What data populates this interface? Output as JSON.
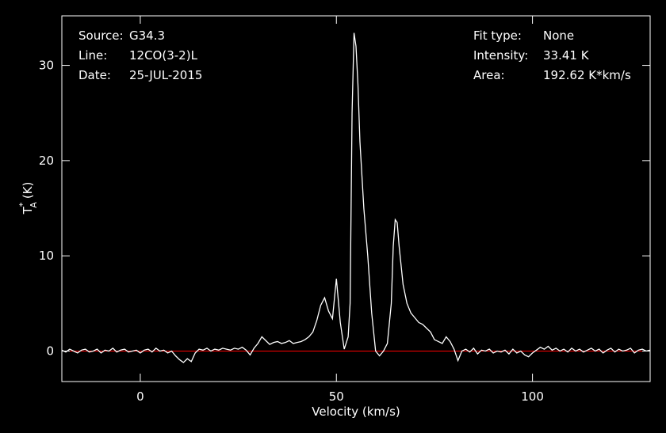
{
  "chart_data": {
    "type": "line",
    "xlabel": "Velocity (km/s)",
    "ylabel": {
      "main": "T",
      "sup": "*",
      "sub": "A",
      "unit": "(K)"
    },
    "annotations": {
      "left": [
        [
          "Source:",
          "G34.3"
        ],
        [
          "Line:",
          "12CO(3-2)L"
        ],
        [
          "Date:",
          "25-JUL-2015"
        ]
      ],
      "right": [
        [
          "Fit type:",
          "None"
        ],
        [
          "Intensity:",
          "33.41 K"
        ],
        [
          "Area:",
          "192.62 K*km/s"
        ]
      ]
    },
    "xlim": [
      -20,
      130
    ],
    "ylim": [
      -3.2,
      35.2
    ],
    "xticks": [
      0,
      50,
      100
    ],
    "yticks": [
      0,
      10,
      20,
      30
    ],
    "baseline": {
      "value": 0,
      "color": "#ff0000"
    },
    "series": [
      {
        "color": "#ffffff",
        "x": [
          -20,
          -19,
          -18,
          -17,
          -16,
          -15,
          -14,
          -13,
          -12,
          -11,
          -10,
          -9,
          -8,
          -7,
          -6,
          -5,
          -4,
          -3,
          -2,
          -1,
          0,
          1,
          2,
          3,
          4,
          5,
          6,
          7,
          8,
          9,
          10,
          11,
          12,
          13,
          14,
          15,
          16,
          17,
          18,
          19,
          20,
          21,
          22,
          23,
          24,
          25,
          26,
          27,
          28,
          29,
          30,
          31,
          32,
          33,
          34,
          35,
          36,
          37,
          38,
          39,
          40,
          41,
          42,
          43,
          44,
          45,
          46,
          47,
          48,
          49,
          50,
          51,
          52,
          53,
          53.5,
          54,
          54.5,
          55,
          55.5,
          56,
          57,
          58,
          59,
          60,
          61,
          62,
          63,
          64,
          64.5,
          65,
          65.5,
          66,
          67,
          68,
          69,
          70,
          71,
          72,
          73,
          74,
          75,
          76,
          77,
          78,
          79,
          80,
          81,
          82,
          83,
          84,
          85,
          86,
          87,
          88,
          89,
          90,
          91,
          92,
          93,
          94,
          95,
          96,
          97,
          98,
          99,
          100,
          101,
          102,
          103,
          104,
          105,
          106,
          107,
          108,
          109,
          110,
          111,
          112,
          113,
          114,
          115,
          116,
          117,
          118,
          119,
          120,
          121,
          122,
          123,
          124,
          125,
          126,
          127,
          128,
          129,
          130
        ],
        "values": [
          0.1,
          -0.1,
          0.2,
          0,
          -0.2,
          0.1,
          0.2,
          -0.1,
          0,
          0.2,
          -0.2,
          0.1,
          0,
          0.3,
          -0.1,
          0.1,
          0.2,
          -0.1,
          0,
          0.1,
          -0.2,
          0.1,
          0.2,
          -0.1,
          0.3,
          0,
          0.1,
          -0.2,
          0,
          -0.5,
          -0.9,
          -1.2,
          -0.8,
          -1.1,
          -0.2,
          0.2,
          0.1,
          0.3,
          0,
          0.2,
          0.1,
          0.3,
          0.2,
          0.1,
          0.3,
          0.2,
          0.4,
          0.1,
          -0.4,
          0.3,
          0.8,
          1.5,
          1.1,
          0.7,
          0.9,
          1.0,
          0.8,
          0.9,
          1.1,
          0.8,
          0.9,
          1.0,
          1.2,
          1.5,
          2.0,
          3.2,
          4.8,
          5.6,
          4.2,
          3.4,
          7.6,
          3.0,
          0.2,
          1.5,
          5,
          25,
          33.41,
          32,
          28,
          22,
          15,
          10,
          4,
          0,
          -0.5,
          0,
          0.8,
          5,
          11,
          13.8,
          13.5,
          11,
          7,
          5,
          4,
          3.5,
          3,
          2.8,
          2.4,
          2,
          1.2,
          1,
          0.8,
          1.5,
          1.0,
          0.2,
          -1,
          0,
          0.2,
          -0.1,
          0.3,
          -0.3,
          0.1,
          0,
          0.2,
          -0.2,
          0,
          -0.1,
          0.1,
          -0.3,
          0.2,
          -0.2,
          0,
          -0.4,
          -0.6,
          -0.2,
          0.1,
          0.4,
          0.2,
          0.5,
          0.1,
          0.3,
          0,
          0.2,
          -0.1,
          0.3,
          0,
          0.2,
          -0.1,
          0.1,
          0.3,
          0,
          0.2,
          -0.2,
          0.1,
          0.3,
          -0.1,
          0.2,
          0,
          0.1,
          0.3,
          -0.2,
          0.1,
          0.2,
          0,
          0.1
        ]
      }
    ]
  }
}
